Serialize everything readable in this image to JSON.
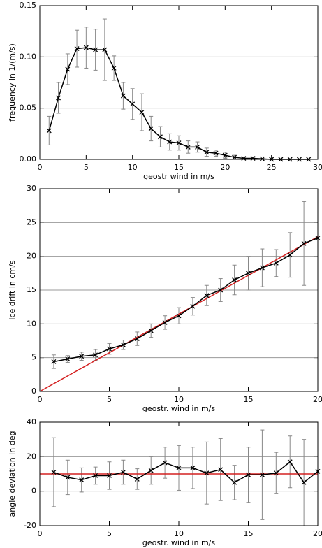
{
  "chart_data": [
    {
      "type": "line",
      "y_label": "frequency in 1/(m/s)",
      "x_label": "geostr wind in m/s",
      "x": [
        1,
        2,
        3,
        4,
        5,
        6,
        7,
        8,
        9,
        10,
        11,
        12,
        13,
        14,
        15,
        16,
        17,
        18,
        19,
        20,
        21,
        22,
        23,
        24,
        25,
        26,
        27,
        28,
        29
      ],
      "values": [
        0.028,
        0.06,
        0.088,
        0.108,
        0.109,
        0.107,
        0.107,
        0.089,
        0.062,
        0.054,
        0.046,
        0.03,
        0.022,
        0.017,
        0.016,
        0.012,
        0.012,
        0.007,
        0.006,
        0.004,
        0.002,
        0.001,
        0.001,
        0.0005,
        0,
        0,
        0,
        0,
        0
      ],
      "errors": [
        0.014,
        0.015,
        0.015,
        0.018,
        0.02,
        0.02,
        0.03,
        0.012,
        0.013,
        0.015,
        0.018,
        0.012,
        0.01,
        0.008,
        0.007,
        0.006,
        0.005,
        0.004,
        0.003,
        0.003,
        0.002,
        0.001,
        0.001,
        0.0005,
        0,
        0,
        0,
        0,
        0
      ],
      "color": "#000000",
      "xlim": [
        0,
        30
      ],
      "xticks": [
        0,
        5,
        10,
        15,
        20,
        25,
        30
      ],
      "ylim": [
        0,
        0.15
      ],
      "yticks": [
        {
          "value": 0,
          "label": "0.00"
        },
        {
          "value": 0.05,
          "label": "0.05"
        },
        {
          "value": 0.1,
          "label": "0.10"
        },
        {
          "value": 0.15,
          "label": "0.15"
        }
      ],
      "grid": true
    },
    {
      "type": "line",
      "y_label": "ice drift in cm/s",
      "x_label": "geostr. wind in m/s",
      "x": [
        1,
        2,
        3,
        4,
        5,
        6,
        7,
        8,
        9,
        10,
        11,
        12,
        13,
        14,
        15,
        16,
        17,
        18,
        19,
        20
      ],
      "values": [
        4.4,
        4.8,
        5.2,
        5.4,
        6.3,
        6.9,
        7.8,
        9.0,
        10.2,
        11.2,
        12.6,
        14.2,
        15.0,
        16.5,
        17.5,
        18.3,
        19.0,
        20.2,
        21.9,
        22.7
      ],
      "errors": [
        1.0,
        0.5,
        0.6,
        0.8,
        0.8,
        0.7,
        1.0,
        1.0,
        1.0,
        1.2,
        1.3,
        1.5,
        1.7,
        2.2,
        2.5,
        2.8,
        2.0,
        3.3,
        6.2,
        0.3
      ],
      "color": "#000000",
      "ref_line": {
        "x": [
          0,
          20
        ],
        "values": [
          0,
          22.9
        ],
        "color": "#d42020"
      },
      "xlim": [
        0,
        20
      ],
      "xticks": [
        0,
        5,
        10,
        15,
        20
      ],
      "ylim": [
        0,
        30
      ],
      "yticks": [
        0,
        5,
        10,
        15,
        20,
        25,
        30
      ],
      "grid": true
    },
    {
      "type": "line",
      "y_label": "angle deviation in deg",
      "x_label": "geostr. wind in m/s",
      "x": [
        1,
        2,
        3,
        4,
        5,
        6,
        7,
        8,
        9,
        10,
        11,
        12,
        13,
        14,
        15,
        16,
        17,
        18,
        19,
        20
      ],
      "values": [
        11,
        8,
        6.5,
        9,
        9,
        11,
        7,
        12,
        16.5,
        13.5,
        13.5,
        10.5,
        12.5,
        5,
        9.5,
        9.5,
        10.5,
        17,
        5,
        11.5
      ],
      "errors": [
        20,
        10,
        7,
        5,
        8,
        7,
        6,
        8,
        9,
        13,
        12,
        18,
        18,
        10,
        16,
        26,
        12,
        15,
        25,
        0
      ],
      "color": "#000000",
      "ref_line": {
        "x": [
          0,
          20
        ],
        "values": [
          10,
          10
        ],
        "color": "#d42020"
      },
      "xlim": [
        0,
        20
      ],
      "xticks": [
        0,
        5,
        10,
        15,
        20
      ],
      "ylim": [
        -20,
        40
      ],
      "yticks": [
        -20,
        0,
        20,
        40
      ],
      "grid": true
    }
  ]
}
